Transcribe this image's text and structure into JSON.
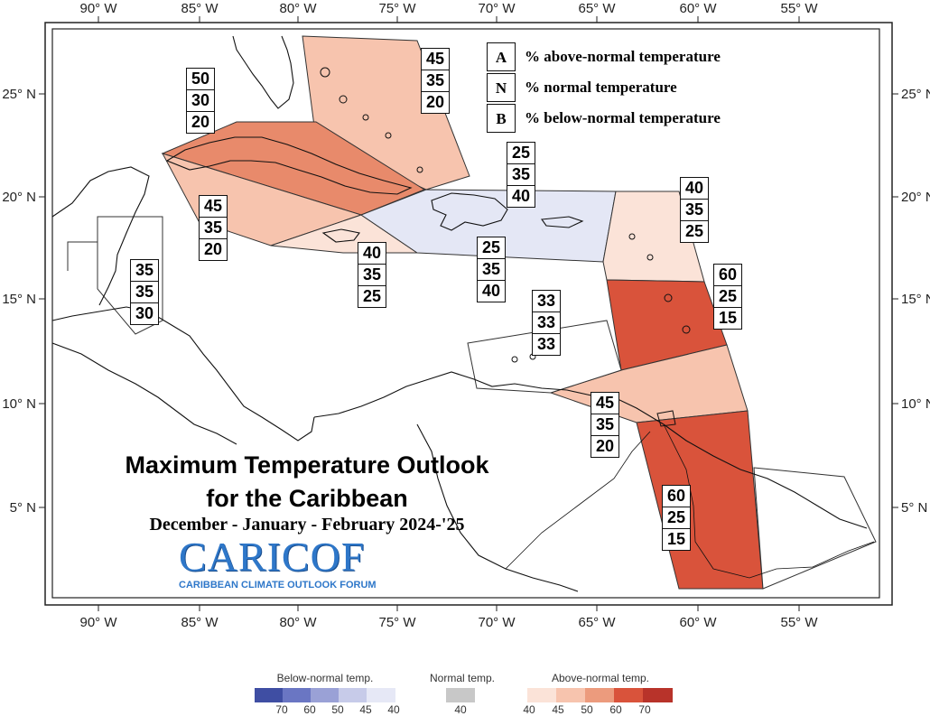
{
  "map": {
    "lon_ticks": [
      "90° W",
      "85° W",
      "80° W",
      "75° W",
      "70° W",
      "65° W",
      "60° W",
      "55° W"
    ],
    "lat_ticks": [
      "25° N",
      "20° N",
      "15° N",
      "10° N",
      "5° N"
    ]
  },
  "legend_key": [
    {
      "letter": "A",
      "text": "% above-normal temperature"
    },
    {
      "letter": "N",
      "text": "% normal temperature"
    },
    {
      "letter": "B",
      "text": "% below-normal temperature"
    }
  ],
  "regions": [
    {
      "name": "bahamas",
      "values": [
        "45",
        "35",
        "20"
      ],
      "color": "#f7c4ae"
    },
    {
      "name": "cuba",
      "values": [
        "50",
        "30",
        "20"
      ],
      "color": "#e88a6b"
    },
    {
      "name": "cayman",
      "values": [
        "45",
        "35",
        "20"
      ],
      "color": "#f7c4ae"
    },
    {
      "name": "jamaica",
      "values": [
        "40",
        "35",
        "25"
      ],
      "color": "#fbe3d8"
    },
    {
      "name": "hispaniola-pr-north",
      "values": [
        "25",
        "35",
        "40"
      ],
      "color": "#e4e7f5"
    },
    {
      "name": "hispaniola-pr-south",
      "values": [
        "25",
        "35",
        "40"
      ],
      "color": "#e4e7f5"
    },
    {
      "name": "belize",
      "values": [
        "35",
        "35",
        "30"
      ],
      "color": "#ffffff"
    },
    {
      "name": "leeward-islands",
      "values": [
        "40",
        "35",
        "25"
      ],
      "color": "#fbe3d8"
    },
    {
      "name": "windward-islands",
      "values": [
        "60",
        "25",
        "15"
      ],
      "color": "#d9533b"
    },
    {
      "name": "abc-islands",
      "values": [
        "33",
        "33",
        "33"
      ],
      "color": "#ffffff"
    },
    {
      "name": "trinidad",
      "values": [
        "45",
        "35",
        "20"
      ],
      "color": "#f7c4ae"
    },
    {
      "name": "guianas",
      "values": [
        "60",
        "25",
        "15"
      ],
      "color": "#d9533b"
    }
  ],
  "title": {
    "line1": "Maximum Temperature Outlook",
    "line2": "for the Caribbean",
    "subtitle": "December - January - February 2024-'25"
  },
  "logo": {
    "main": "CARICOF",
    "sub": "CARIBBEAN CLIMATE OUTLOOK FORUM"
  },
  "colorbar": {
    "below": {
      "label": "Below-normal temp.",
      "ticks": [
        "70",
        "60",
        "50",
        "45",
        "40"
      ],
      "colors": [
        "#3f4ea3",
        "#6a76c3",
        "#9aa1d6",
        "#c7cbe9",
        "#e6e8f6"
      ]
    },
    "normal": {
      "label": "Normal temp.",
      "ticks": [
        "40"
      ],
      "colors": [
        "#c8c8c8"
      ]
    },
    "above": {
      "label": "Above-normal temp.",
      "ticks": [
        "40",
        "45",
        "50",
        "60",
        "70"
      ],
      "colors": [
        "#fbe3d8",
        "#f7c4ae",
        "#ec9b7d",
        "#d9533b",
        "#b8332a"
      ]
    }
  }
}
